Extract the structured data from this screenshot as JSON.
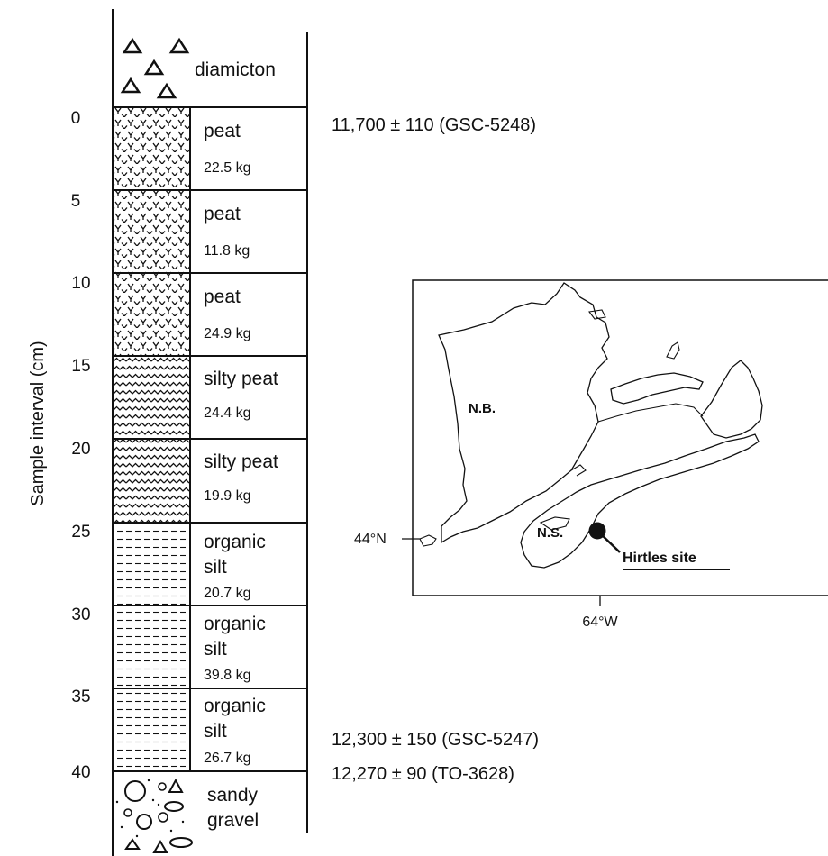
{
  "axis": {
    "title": "Sample interval (cm)",
    "ticks": [
      "0",
      "5",
      "10",
      "15",
      "20",
      "25",
      "30",
      "35",
      "40"
    ]
  },
  "column": {
    "top_unit": "diamicton",
    "layers": [
      {
        "name_lines": [
          "peat"
        ],
        "mass": "22.5 kg",
        "pattern": "peat"
      },
      {
        "name_lines": [
          "peat"
        ],
        "mass": "11.8 kg",
        "pattern": "peat"
      },
      {
        "name_lines": [
          "peat"
        ],
        "mass": "24.9 kg",
        "pattern": "peat"
      },
      {
        "name_lines": [
          "silty peat"
        ],
        "mass": "24.4 kg",
        "pattern": "silty-peat"
      },
      {
        "name_lines": [
          "silty peat"
        ],
        "mass": "19.9 kg",
        "pattern": "silty-peat"
      },
      {
        "name_lines": [
          "organic",
          "silt"
        ],
        "mass": "20.7 kg",
        "pattern": "organic-silt"
      },
      {
        "name_lines": [
          "organic",
          "silt"
        ],
        "mass": "39.8 kg",
        "pattern": "organic-silt"
      },
      {
        "name_lines": [
          "organic",
          "silt"
        ],
        "mass": "26.7 kg",
        "pattern": "organic-silt"
      }
    ],
    "bottom_unit_lines": [
      "sandy",
      "gravel"
    ]
  },
  "dates": {
    "top": "11,700 ± 110 (GSC-5248)",
    "bottom_1": "12,300 ± 150 (GSC-5247)",
    "bottom_2": "12,270 ± 90 (TO-3628)"
  },
  "map": {
    "nb_label": "N.B.",
    "ns_label": "N.S.",
    "lat_label": "44°N",
    "lon_label": "64°W",
    "site_label": "Hirtles site"
  }
}
